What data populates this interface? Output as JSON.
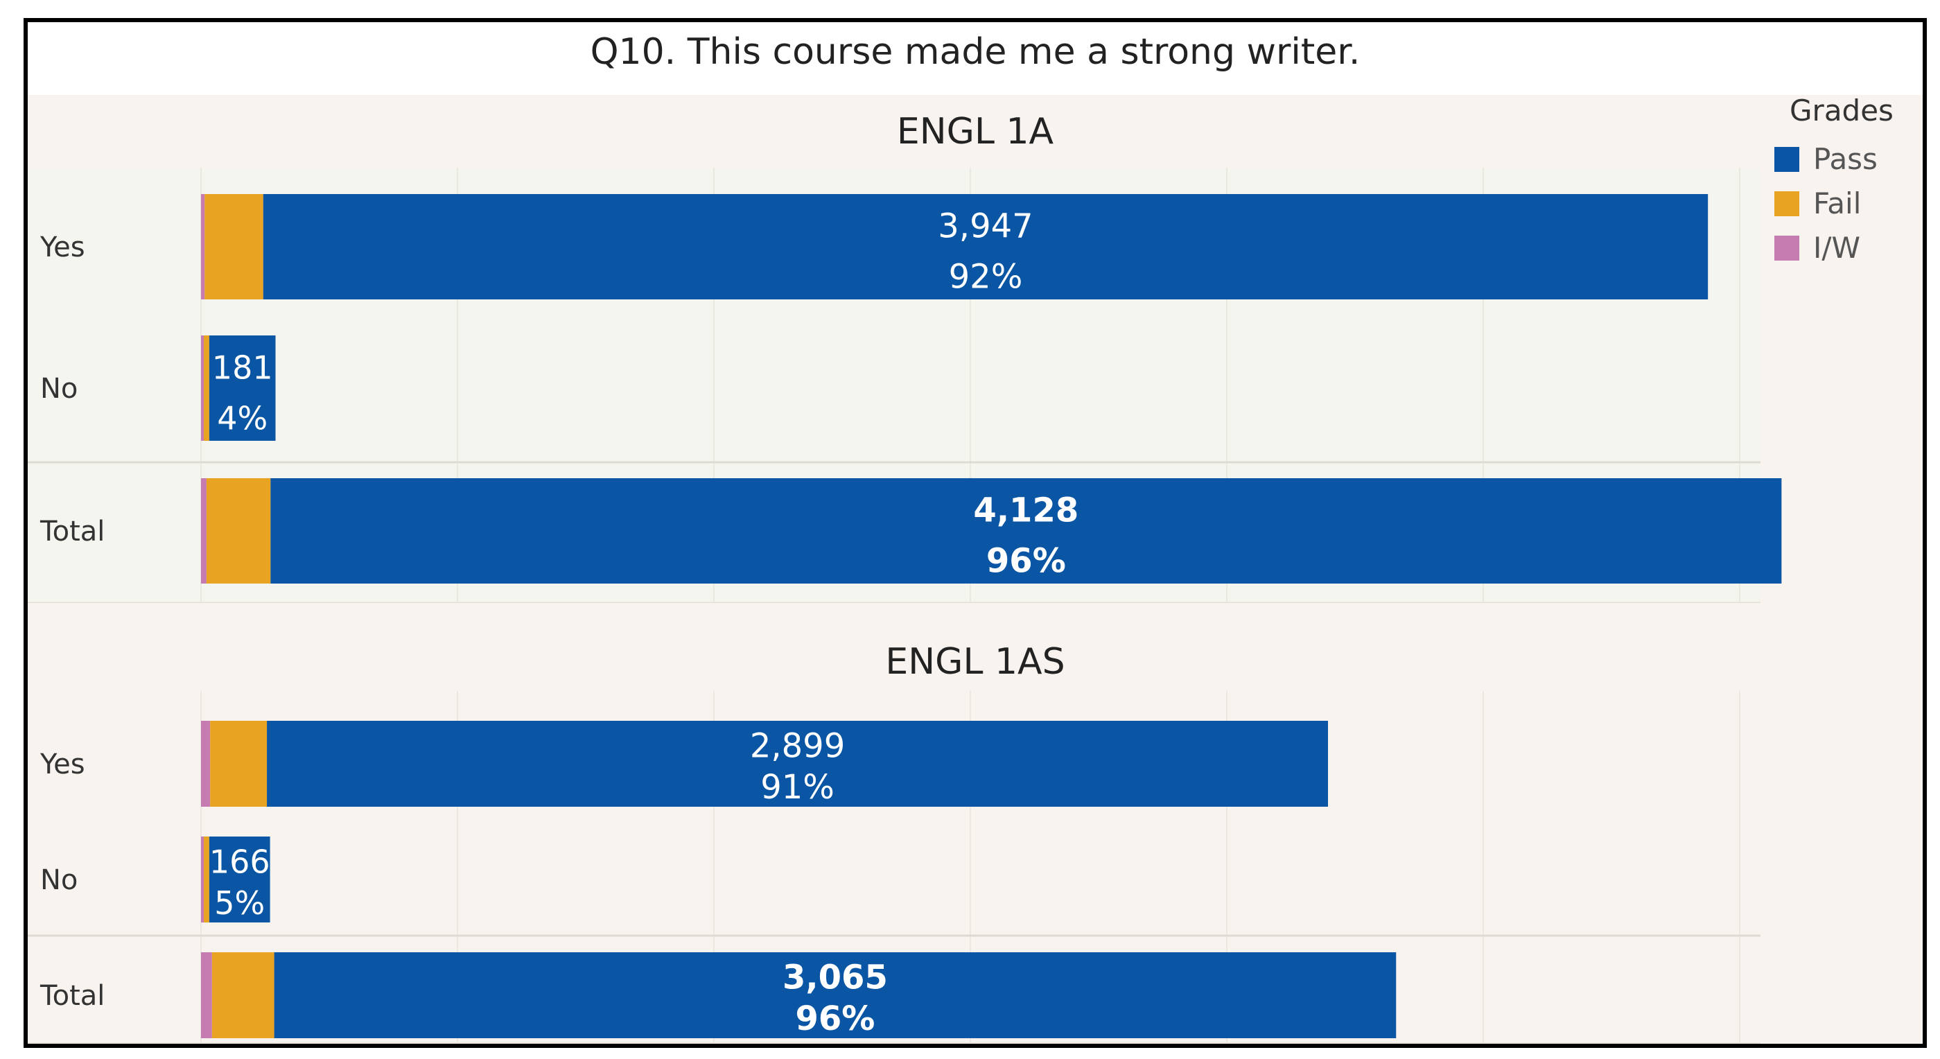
{
  "chart_data": {
    "type": "bar",
    "stacked": true,
    "orientation": "horizontal",
    "title": "Q10. This course made me a strong writer.",
    "legend": {
      "title": "Grades",
      "position": "top-right",
      "entries": [
        {
          "name": "Pass",
          "color": "#0b56a4"
        },
        {
          "name": "Fail",
          "color": "#e8a323"
        },
        {
          "name": "I/W",
          "color": "#c77cb1"
        }
      ]
    },
    "grid": true,
    "panels": [
      {
        "title": "ENGL 1A",
        "rows": [
          {
            "label": "Yes",
            "values": {
              "I/W": 10,
              "Fail": 160,
              "Pass": 3947
            },
            "count_label": "3,947",
            "pct_label": "92%",
            "bold": false
          },
          {
            "label": "No",
            "values": {
              "I/W": 5,
              "Fail": 15,
              "Pass": 181
            },
            "count_label": "181",
            "pct_label": "4%",
            "bold": false
          },
          {
            "label": "Total",
            "values": {
              "I/W": 15,
              "Fail": 175,
              "Pass": 4128
            },
            "count_label": "4,128",
            "pct_label": "96%",
            "bold": true
          }
        ]
      },
      {
        "title": "ENGL 1AS",
        "rows": [
          {
            "label": "Yes",
            "values": {
              "I/W": 25,
              "Fail": 155,
              "Pass": 2899
            },
            "count_label": "2,899",
            "pct_label": "91%",
            "bold": false
          },
          {
            "label": "No",
            "values": {
              "I/W": 5,
              "Fail": 15,
              "Pass": 166
            },
            "count_label": "166",
            "pct_label": "5%",
            "bold": false
          },
          {
            "label": "Total",
            "values": {
              "I/W": 30,
              "Fail": 170,
              "Pass": 3065
            },
            "count_label": "3,065",
            "pct_label": "96%",
            "bold": true
          }
        ]
      }
    ]
  }
}
